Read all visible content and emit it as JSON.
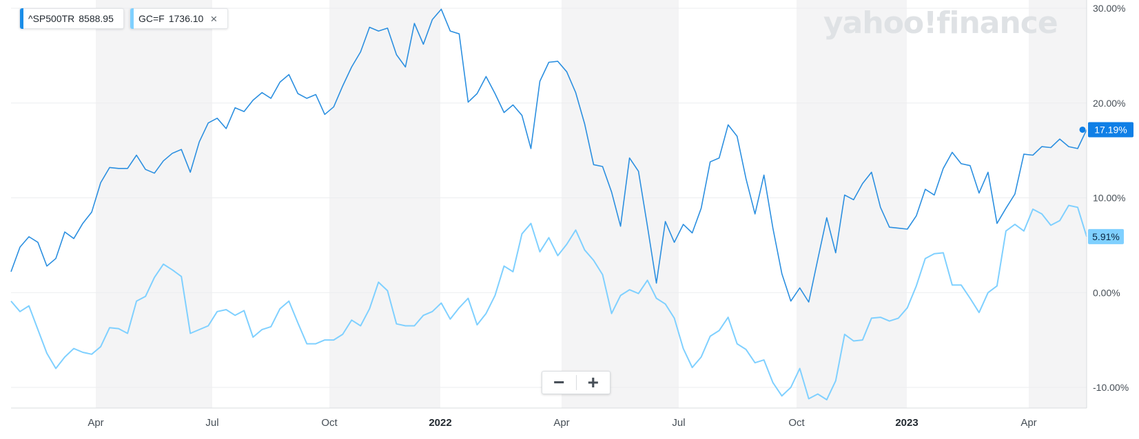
{
  "legend": [
    {
      "symbol": "^SP500TR",
      "value": "8588.95",
      "color": "#1a8de8",
      "closable": false
    },
    {
      "symbol": "GC=F",
      "value": "1736.10",
      "color": "#7fd0ff",
      "closable": true,
      "close_icon": "close-icon"
    }
  ],
  "logo": "yahoo!finance",
  "zoom": {
    "minus_label": "−",
    "plus_label": "+"
  },
  "chart_data": {
    "type": "line",
    "x_ticks": [
      "Apr",
      "Jul",
      "Oct",
      "2022",
      "Apr",
      "Jul",
      "Oct",
      "2023",
      "Apr"
    ],
    "y_ticks": [
      "30.00%",
      "20.00%",
      "10.00%",
      "0.00%",
      "-10.00%"
    ],
    "y_tick_values": [
      30,
      20,
      10,
      0,
      -10
    ],
    "ylim": [
      -12,
      30.5
    ],
    "grid": true,
    "shaded_quarters": true,
    "series": [
      {
        "name": "^SP500TR",
        "color": "#2b8fe0",
        "last_label": "17.19%",
        "values": [
          2.2,
          4.8,
          5.9,
          5.3,
          2.8,
          3.6,
          6.4,
          5.7,
          7.3,
          8.5,
          11.6,
          13.2,
          13.1,
          13.1,
          14.5,
          13.0,
          12.6,
          13.9,
          14.7,
          15.1,
          12.7,
          15.9,
          17.9,
          18.4,
          17.3,
          19.5,
          19.1,
          20.3,
          21.1,
          20.5,
          22.2,
          23.0,
          21.0,
          20.5,
          20.9,
          18.8,
          19.6,
          21.8,
          23.8,
          25.4,
          28.0,
          27.6,
          27.9,
          25.1,
          23.8,
          28.4,
          26.2,
          28.8,
          29.9,
          27.6,
          27.3,
          20.1,
          21.0,
          22.8,
          21.0,
          19.0,
          19.8,
          18.7,
          15.2,
          22.3,
          24.3,
          24.4,
          23.3,
          21.1,
          17.8,
          13.5,
          13.3,
          10.6,
          7.0,
          14.2,
          12.8,
          7.0,
          1.0,
          7.5,
          5.3,
          7.2,
          6.3,
          8.9,
          13.8,
          14.2,
          17.7,
          16.5,
          12.0,
          8.3,
          12.4,
          6.8,
          2.0,
          -0.9,
          0.5,
          -1.0,
          3.5,
          7.9,
          4.2,
          10.3,
          9.8,
          11.5,
          12.7,
          9.0,
          6.9,
          6.8,
          6.7,
          8.1,
          10.9,
          10.3,
          13.1,
          14.8,
          13.6,
          13.4,
          10.5,
          12.7,
          7.3,
          8.9,
          10.4,
          14.6,
          14.5,
          15.4,
          15.3,
          16.2,
          15.4,
          15.2,
          17.19
        ]
      },
      {
        "name": "GC=F",
        "color": "#7fd0ff",
        "last_label": "5.91%",
        "values": [
          -0.9,
          -2.0,
          -1.4,
          -3.9,
          -6.4,
          -8.0,
          -6.8,
          -5.9,
          -6.3,
          -6.5,
          -5.7,
          -3.7,
          -3.8,
          -4.3,
          -0.9,
          -0.4,
          1.6,
          3.0,
          2.4,
          1.7,
          -4.3,
          -3.9,
          -3.5,
          -2.0,
          -1.8,
          -2.4,
          -1.9,
          -4.7,
          -3.9,
          -3.6,
          -1.7,
          -0.9,
          -3.2,
          -5.4,
          -5.4,
          -5.0,
          -5.0,
          -4.4,
          -2.9,
          -3.5,
          -1.7,
          1.1,
          0.2,
          -3.3,
          -3.5,
          -3.5,
          -2.4,
          -2.0,
          -1.1,
          -2.8,
          -1.6,
          -0.6,
          -3.4,
          -2.2,
          -0.3,
          2.8,
          2.2,
          6.2,
          7.3,
          4.3,
          5.8,
          3.9,
          5.1,
          6.6,
          4.5,
          3.4,
          1.9,
          -2.2,
          -0.3,
          0.3,
          -0.1,
          1.3,
          -0.6,
          -1.2,
          -2.7,
          -5.9,
          -7.9,
          -6.8,
          -4.6,
          -4.0,
          -2.6,
          -5.4,
          -6.0,
          -7.4,
          -7.1,
          -9.5,
          -10.9,
          -10.0,
          -8.0,
          -11.2,
          -10.7,
          -11.3,
          -9.3,
          -4.4,
          -5.1,
          -5.0,
          -2.7,
          -2.6,
          -3.0,
          -2.7,
          -1.6,
          0.7,
          3.6,
          4.1,
          4.2,
          0.8,
          0.8,
          -0.6,
          -2.1,
          0.0,
          0.7,
          6.5,
          7.2,
          6.5,
          8.8,
          8.3,
          7.1,
          7.6,
          9.2,
          9.0,
          5.91
        ]
      }
    ]
  }
}
